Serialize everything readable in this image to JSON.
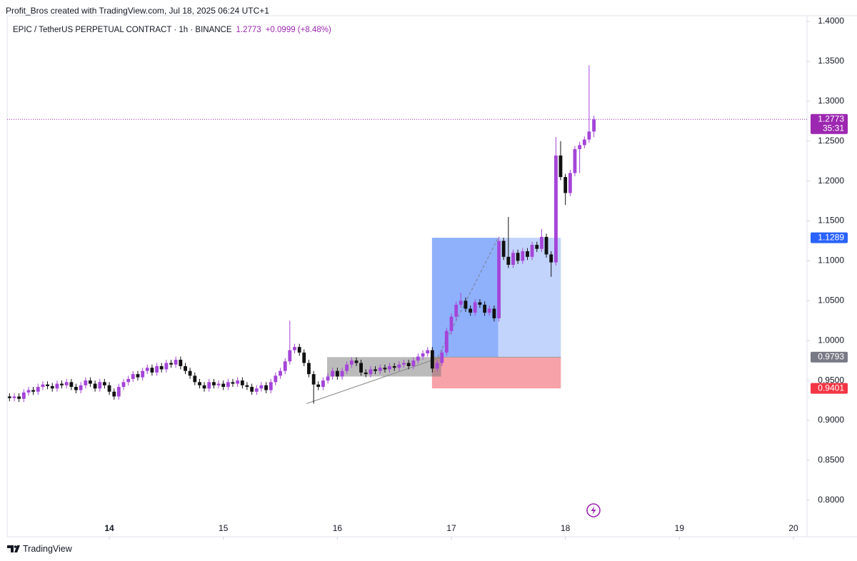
{
  "chart_data": {
    "type": "candlestick",
    "credit": "Profit_Bros created with TradingView.com, Jul 18, 2025 06:24 UTC+1",
    "title": "EPIC / TetherUS PERPETUAL CONTRACT · 1h · BINANCE",
    "change": "+0.0999 (+8.48%)",
    "countdown": "35:31",
    "brand": "TradingView",
    "up_color": "#a445d8",
    "down_color": "#111111",
    "x": [
      13.125,
      13.167,
      13.208,
      13.25,
      13.292,
      13.333,
      13.375,
      13.417,
      13.458,
      13.5,
      13.542,
      13.583,
      13.625,
      13.667,
      13.708,
      13.75,
      13.792,
      13.833,
      13.875,
      13.917,
      13.958,
      14,
      14.042,
      14.083,
      14.125,
      14.167,
      14.208,
      14.25,
      14.292,
      14.333,
      14.375,
      14.417,
      14.458,
      14.5,
      14.542,
      14.583,
      14.625,
      14.667,
      14.708,
      14.75,
      14.792,
      14.833,
      14.875,
      14.917,
      14.958,
      15,
      15.042,
      15.083,
      15.125,
      15.167,
      15.208,
      15.25,
      15.292,
      15.333,
      15.375,
      15.417,
      15.458,
      15.5,
      15.542,
      15.583,
      15.625,
      15.667,
      15.708,
      15.75,
      15.792,
      15.833,
      15.875,
      15.917,
      15.958,
      16,
      16.042,
      16.083,
      16.125,
      16.167,
      16.208,
      16.25,
      16.292,
      16.333,
      16.375,
      16.417,
      16.458,
      16.5,
      16.542,
      16.583,
      16.625,
      16.667,
      16.708,
      16.75,
      16.792,
      16.833,
      16.875,
      16.917,
      16.958,
      17,
      17.042,
      17.083,
      17.125,
      17.167,
      17.208,
      17.25,
      17.292,
      17.333,
      17.375,
      17.417,
      17.458,
      17.5,
      17.542,
      17.583,
      17.625,
      17.667,
      17.708,
      17.75,
      17.792,
      17.833,
      17.875,
      17.917,
      17.958,
      18,
      18.042,
      18.083,
      18.125,
      18.167,
      18.208,
      18.25
    ],
    "open": [
      0.93,
      0.928,
      0.93,
      0.927,
      0.935,
      0.938,
      0.936,
      0.942,
      0.945,
      0.943,
      0.94,
      0.946,
      0.944,
      0.948,
      0.942,
      0.938,
      0.944,
      0.95,
      0.946,
      0.94,
      0.948,
      0.944,
      0.936,
      0.93,
      0.942,
      0.948,
      0.952,
      0.958,
      0.954,
      0.962,
      0.966,
      0.96,
      0.968,
      0.964,
      0.972,
      0.97,
      0.976,
      0.968,
      0.962,
      0.956,
      0.948,
      0.944,
      0.94,
      0.948,
      0.944,
      0.946,
      0.942,
      0.948,
      0.946,
      0.95,
      0.944,
      0.942,
      0.936,
      0.94,
      0.944,
      0.938,
      0.948,
      0.956,
      0.962,
      0.974,
      0.988,
      0.992,
      0.985,
      0.972,
      0.958,
      0.945,
      0.942,
      0.95,
      0.955,
      0.962,
      0.955,
      0.962,
      0.97,
      0.975,
      0.972,
      0.96,
      0.958,
      0.964,
      0.962,
      0.966,
      0.964,
      0.968,
      0.966,
      0.97,
      0.972,
      0.968,
      0.975,
      0.98,
      0.984,
      0.988,
      0.965,
      0.972,
      0.985,
      1.012,
      1.03,
      1.045,
      1.05,
      1.04,
      1.035,
      1.048,
      1.045,
      1.035,
      1.04,
      1.028,
      1.125,
      1.105,
      1.095,
      1.11,
      1.1,
      1.112,
      1.105,
      1.12,
      1.115,
      1.13,
      1.108,
      1.098,
      1.232,
      1.205,
      1.185,
      1.21,
      1.24,
      1.245,
      1.252,
      1.262
    ],
    "high": [
      0.934,
      0.934,
      0.934,
      0.939,
      0.942,
      0.942,
      0.946,
      0.949,
      0.949,
      0.947,
      0.95,
      0.95,
      0.952,
      0.952,
      0.946,
      0.948,
      0.954,
      0.954,
      0.95,
      0.952,
      0.952,
      0.948,
      0.94,
      0.946,
      0.952,
      0.956,
      0.962,
      0.962,
      0.966,
      0.97,
      0.97,
      0.972,
      0.972,
      0.976,
      0.976,
      0.98,
      0.98,
      0.972,
      0.966,
      0.96,
      0.952,
      0.948,
      0.952,
      0.952,
      0.95,
      0.95,
      0.952,
      0.952,
      0.954,
      0.954,
      0.948,
      0.946,
      0.944,
      0.948,
      0.948,
      0.952,
      0.96,
      0.966,
      0.978,
      1.025,
      0.996,
      0.996,
      0.989,
      0.976,
      0.962,
      0.949,
      0.954,
      0.959,
      0.966,
      0.966,
      0.966,
      0.974,
      0.979,
      0.979,
      0.976,
      0.964,
      0.968,
      0.968,
      0.97,
      0.97,
      0.972,
      0.972,
      0.974,
      0.976,
      0.976,
      0.979,
      0.984,
      0.988,
      0.992,
      0.992,
      0.976,
      0.989,
      1.016,
      1.034,
      1.049,
      1.06,
      1.054,
      1.044,
      1.052,
      1.052,
      1.049,
      1.044,
      1.044,
      1.13,
      1.129,
      1.155,
      1.114,
      1.114,
      1.116,
      1.116,
      1.124,
      1.124,
      1.14,
      1.134,
      1.112,
      1.255,
      1.25,
      1.209,
      1.214,
      1.244,
      1.249,
      1.256,
      1.345,
      1.282
    ],
    "low": [
      0.924,
      0.924,
      0.923,
      0.923,
      0.931,
      0.932,
      0.932,
      0.938,
      0.939,
      0.936,
      0.936,
      0.94,
      0.94,
      0.938,
      0.934,
      0.934,
      0.94,
      0.942,
      0.936,
      0.936,
      0.94,
      0.932,
      0.926,
      0.926,
      0.938,
      0.944,
      0.948,
      0.95,
      0.95,
      0.958,
      0.956,
      0.956,
      0.96,
      0.96,
      0.966,
      0.966,
      0.964,
      0.958,
      0.952,
      0.944,
      0.94,
      0.936,
      0.936,
      0.94,
      0.94,
      0.938,
      0.938,
      0.942,
      0.942,
      0.94,
      0.938,
      0.932,
      0.932,
      0.936,
      0.934,
      0.934,
      0.944,
      0.952,
      0.958,
      0.97,
      0.984,
      0.981,
      0.968,
      0.954,
      0.921,
      0.938,
      0.938,
      0.946,
      0.951,
      0.951,
      0.951,
      0.958,
      0.966,
      0.968,
      0.956,
      0.954,
      0.954,
      0.958,
      0.958,
      0.96,
      0.96,
      0.962,
      0.962,
      0.966,
      0.964,
      0.964,
      0.971,
      0.976,
      0.98,
      0.96,
      0.961,
      0.968,
      0.981,
      1.008,
      1.026,
      1.041,
      1.036,
      1.031,
      1.031,
      1.041,
      1.031,
      1.031,
      1.024,
      1.024,
      1.101,
      1.091,
      1.091,
      1.096,
      1.096,
      1.101,
      1.101,
      1.111,
      1.111,
      1.104,
      1.08,
      1.094,
      1.201,
      1.17,
      1.181,
      1.206,
      1.21,
      1.241,
      1.248,
      1.255
    ],
    "close": [
      0.928,
      0.93,
      0.927,
      0.935,
      0.938,
      0.936,
      0.942,
      0.945,
      0.943,
      0.94,
      0.946,
      0.944,
      0.948,
      0.942,
      0.938,
      0.944,
      0.95,
      0.946,
      0.94,
      0.948,
      0.944,
      0.936,
      0.93,
      0.942,
      0.948,
      0.952,
      0.958,
      0.954,
      0.962,
      0.966,
      0.96,
      0.968,
      0.964,
      0.972,
      0.97,
      0.976,
      0.968,
      0.962,
      0.956,
      0.948,
      0.944,
      0.94,
      0.948,
      0.944,
      0.946,
      0.942,
      0.948,
      0.946,
      0.95,
      0.944,
      0.942,
      0.936,
      0.94,
      0.944,
      0.938,
      0.948,
      0.956,
      0.962,
      0.974,
      0.988,
      0.992,
      0.985,
      0.972,
      0.958,
      0.945,
      0.942,
      0.95,
      0.955,
      0.962,
      0.955,
      0.962,
      0.97,
      0.975,
      0.972,
      0.96,
      0.958,
      0.964,
      0.962,
      0.966,
      0.964,
      0.968,
      0.966,
      0.97,
      0.972,
      0.968,
      0.975,
      0.98,
      0.984,
      0.988,
      0.965,
      0.972,
      0.985,
      1.012,
      1.03,
      1.045,
      1.05,
      1.04,
      1.035,
      1.048,
      1.045,
      1.035,
      1.04,
      1.028,
      1.125,
      1.105,
      1.095,
      1.11,
      1.1,
      1.112,
      1.105,
      1.12,
      1.115,
      1.13,
      1.108,
      1.098,
      1.232,
      1.205,
      1.185,
      1.21,
      1.24,
      1.245,
      1.252,
      1.262,
      1.2773
    ],
    "xlim": [
      13.104,
      20.119
    ],
    "xticks": [
      14,
      15,
      16,
      17,
      18,
      19,
      20
    ],
    "ylim": [
      0.7542,
      1.4072
    ],
    "yticks": [
      {
        "value": 0.8,
        "label": "0.8000"
      },
      {
        "value": 0.85,
        "label": "0.8500"
      },
      {
        "value": 0.9,
        "label": "0.9000"
      },
      {
        "value": 0.95,
        "label": "0.9500"
      },
      {
        "value": 1.0,
        "label": "1.0000"
      },
      {
        "value": 1.05,
        "label": "1.0500"
      },
      {
        "value": 1.1,
        "label": "1.1000"
      },
      {
        "value": 1.15,
        "label": "1.1500"
      },
      {
        "value": 1.2,
        "label": "1.2000"
      },
      {
        "value": 1.25,
        "label": "1.2500"
      },
      {
        "value": 1.3,
        "label": "1.3000"
      },
      {
        "value": 1.35,
        "label": "1.3500"
      },
      {
        "value": 1.4,
        "label": "1.4000"
      }
    ],
    "grid": false,
    "last_price_color": "#9c27b0",
    "position": {
      "start": 16.83,
      "split": 17.41,
      "end": 17.96,
      "entry": 0.9793,
      "target": 1.1289,
      "stop": 0.9401,
      "target_color": "#2962ff",
      "entry_color": "#787b86",
      "stop_color": "#f23645"
    },
    "range_box": {
      "start": 15.91,
      "end": 16.91,
      "top": 0.9793,
      "bottom": 0.955
    },
    "trend_line": {
      "x": [
        15.73,
        16.91
      ],
      "y": [
        0.921,
        0.9793
      ]
    }
  }
}
